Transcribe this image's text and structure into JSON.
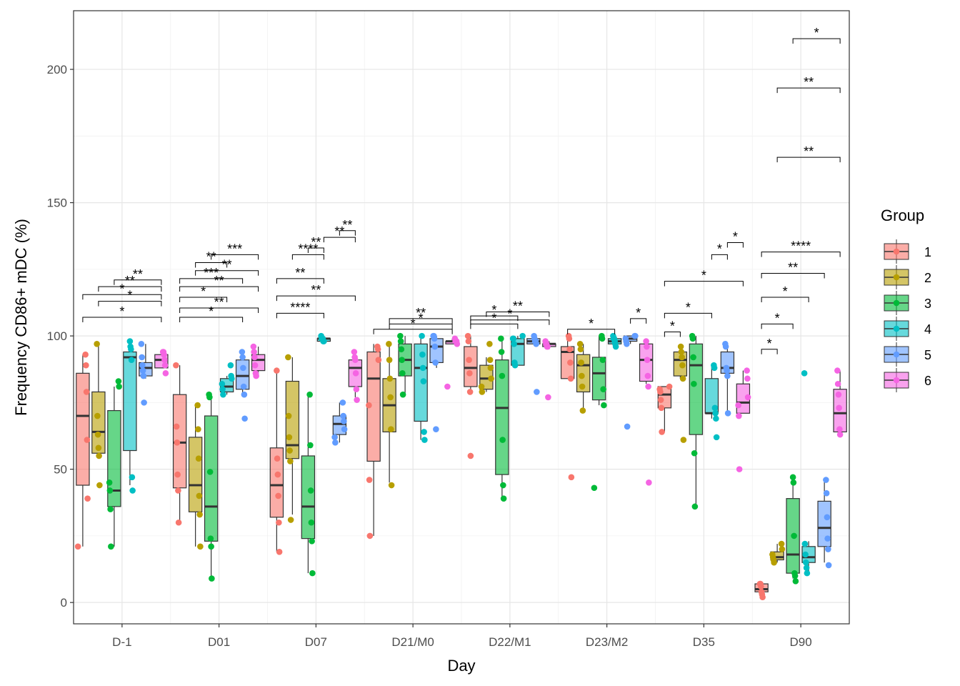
{
  "chart_data": {
    "type": "box",
    "xlabel": "Day",
    "ylabel": "Frequency  CD86+ mDC (%)",
    "ylim": [
      -8,
      222
    ],
    "yticks": [
      0,
      50,
      100,
      150,
      200
    ],
    "grid": true,
    "legend": {
      "title": "Group",
      "placement": "right",
      "entries": [
        "1",
        "2",
        "3",
        "4",
        "5",
        "6"
      ]
    },
    "series_colors": [
      "#F8766D",
      "#B79F00",
      "#00BA38",
      "#00BFC4",
      "#619CFF",
      "#F564E3"
    ],
    "categories": [
      "D-1",
      "D01",
      "D07",
      "D21/M0",
      "D22/M1",
      "D23/M2",
      "D35",
      "D90"
    ],
    "boxes": [
      [
        {
          "min": 21,
          "q1": 44,
          "median": 70,
          "q3": 86,
          "max": 93,
          "points": [
            21,
            39,
            61,
            79,
            89,
            93
          ]
        },
        {
          "min": 55,
          "q1": 56,
          "median": 64,
          "q3": 79,
          "max": 97,
          "points": [
            44,
            55,
            58,
            63,
            70,
            97
          ]
        },
        {
          "min": 21,
          "q1": 36,
          "median": 42,
          "q3": 72,
          "max": 81,
          "points": [
            21,
            35,
            42,
            45,
            81,
            83
          ]
        },
        {
          "min": 44,
          "q1": 57,
          "median": 92,
          "q3": 94,
          "max": 98,
          "points": [
            42,
            47,
            91,
            95,
            96,
            98
          ]
        },
        {
          "min": 84,
          "q1": 85,
          "median": 88,
          "q3": 90,
          "max": 97,
          "points": [
            75,
            85,
            87,
            89,
            92,
            97
          ]
        },
        {
          "min": 88,
          "q1": 88,
          "median": 91,
          "q3": 93,
          "max": 94,
          "points": [
            86,
            89,
            91,
            93,
            94,
            94
          ]
        }
      ],
      [
        {
          "min": 30,
          "q1": 43,
          "median": 60,
          "q3": 78,
          "max": 89,
          "points": [
            30,
            42,
            48,
            60,
            66,
            89
          ]
        },
        {
          "min": 21,
          "q1": 34,
          "median": 44,
          "q3": 62,
          "max": 74,
          "points": [
            21,
            33,
            40,
            54,
            65,
            74
          ]
        },
        {
          "min": 9,
          "q1": 23,
          "median": 36,
          "q3": 70,
          "max": 77,
          "points": [
            9,
            21,
            24,
            49,
            77,
            78
          ]
        },
        {
          "min": 78,
          "q1": 79,
          "median": 81,
          "q3": 84,
          "max": 85,
          "points": [
            78,
            80,
            82,
            84,
            85,
            89
          ]
        },
        {
          "min": 78,
          "q1": 80,
          "median": 85,
          "q3": 91,
          "max": 94,
          "points": [
            69,
            78,
            81,
            88,
            92,
            94
          ]
        },
        {
          "min": 85,
          "q1": 87,
          "median": 91,
          "q3": 93,
          "max": 96,
          "points": [
            85,
            86,
            89,
            92,
            94,
            96
          ]
        }
      ],
      [
        {
          "min": 19,
          "q1": 32,
          "median": 44,
          "q3": 58,
          "max": 87,
          "points": [
            19,
            30,
            40,
            48,
            54,
            87
          ]
        },
        {
          "min": 33,
          "q1": 54,
          "median": 59,
          "q3": 83,
          "max": 92,
          "points": [
            31,
            53,
            57,
            62,
            70,
            92
          ]
        },
        {
          "min": 11,
          "q1": 24,
          "median": 36,
          "q3": 55,
          "max": 78,
          "points": [
            11,
            23,
            30,
            42,
            59,
            78
          ]
        },
        {
          "min": 98,
          "q1": 98,
          "median": 99,
          "q3": 99,
          "max": 100,
          "points": [
            98,
            98,
            99,
            99,
            99,
            100
          ]
        },
        {
          "min": 60,
          "q1": 63,
          "median": 67,
          "q3": 70,
          "max": 75,
          "points": [
            60,
            62,
            65,
            68,
            70,
            75
          ]
        },
        {
          "min": 77,
          "q1": 81,
          "median": 88,
          "q3": 91,
          "max": 94,
          "points": [
            76,
            80,
            86,
            91,
            92,
            94
          ]
        }
      ],
      [
        {
          "min": 25,
          "q1": 53,
          "median": 84,
          "q3": 94,
          "max": 97,
          "points": [
            25,
            46,
            74,
            91,
            95,
            96
          ]
        },
        {
          "min": 45,
          "q1": 64,
          "median": 74,
          "q3": 84,
          "max": 97,
          "points": [
            44,
            65,
            77,
            84,
            91,
            97
          ]
        },
        {
          "min": 78,
          "q1": 85,
          "median": 91,
          "q3": 97,
          "max": 100,
          "points": [
            78,
            86,
            91,
            95,
            98,
            100
          ]
        },
        {
          "min": 61,
          "q1": 68,
          "median": 88,
          "q3": 97,
          "max": 100,
          "points": [
            61,
            64,
            83,
            88,
            93,
            100
          ]
        },
        {
          "min": 88,
          "q1": 90,
          "median": 96,
          "q3": 99,
          "max": 100,
          "points": [
            65,
            90,
            96,
            99,
            100,
            100
          ]
        },
        {
          "min": 97,
          "q1": 97,
          "median": 98,
          "q3": 98,
          "max": 99,
          "points": [
            81,
            97,
            98,
            98,
            98,
            99
          ]
        }
      ],
      [
        {
          "min": 79,
          "q1": 81,
          "median": 88,
          "q3": 96,
          "max": 100,
          "points": [
            55,
            79,
            86,
            91,
            98,
            100
          ]
        },
        {
          "min": 79,
          "q1": 80,
          "median": 84,
          "q3": 89,
          "max": 92,
          "points": [
            79,
            81,
            84,
            88,
            91,
            97
          ]
        },
        {
          "min": 39,
          "q1": 48,
          "median": 73,
          "q3": 91,
          "max": 99,
          "points": [
            39,
            44,
            61,
            85,
            94,
            99
          ]
        },
        {
          "min": 89,
          "q1": 89,
          "median": 97,
          "q3": 99,
          "max": 100,
          "points": [
            89,
            90,
            97,
            99,
            99,
            100
          ]
        },
        {
          "min": 97,
          "q1": 97,
          "median": 98,
          "q3": 99,
          "max": 100,
          "points": [
            79,
            97,
            98,
            98,
            99,
            100
          ]
        },
        {
          "min": 95,
          "q1": 96,
          "median": 97,
          "q3": 97,
          "max": 98,
          "points": [
            77,
            96,
            96,
            97,
            97,
            98
          ]
        }
      ],
      [
        {
          "min": 84,
          "q1": 84,
          "median": 94,
          "q3": 96,
          "max": 100,
          "points": [
            47,
            84,
            90,
            95,
            99,
            100
          ]
        },
        {
          "min": 72,
          "q1": 79,
          "median": 89,
          "q3": 93,
          "max": 97,
          "points": [
            72,
            81,
            85,
            90,
            95,
            97
          ]
        },
        {
          "min": 74,
          "q1": 76,
          "median": 86,
          "q3": 92,
          "max": 100,
          "points": [
            43,
            74,
            80,
            91,
            99,
            100
          ]
        },
        {
          "min": 96,
          "q1": 97,
          "median": 98,
          "q3": 99,
          "max": 100,
          "points": [
            96,
            97,
            98,
            99,
            99,
            100
          ]
        },
        {
          "min": 97,
          "q1": 98,
          "median": 99,
          "q3": 100,
          "max": 100,
          "points": [
            66,
            97,
            98,
            99,
            100,
            100
          ]
        },
        {
          "min": 82,
          "q1": 83,
          "median": 91,
          "q3": 97,
          "max": 98,
          "points": [
            45,
            81,
            85,
            91,
            96,
            98
          ]
        }
      ],
      [
        {
          "min": 64,
          "q1": 73,
          "median": 78,
          "q3": 81,
          "max": 81,
          "points": [
            64,
            73,
            76,
            79,
            80,
            81
          ]
        },
        {
          "min": 84,
          "q1": 85,
          "median": 91,
          "q3": 94,
          "max": 96,
          "points": [
            61,
            84,
            89,
            92,
            94,
            96
          ]
        },
        {
          "min": 36,
          "q1": 63,
          "median": 89,
          "q3": 97,
          "max": 100,
          "points": [
            36,
            56,
            82,
            92,
            99,
            100
          ]
        },
        {
          "min": 69,
          "q1": 71,
          "median": 71,
          "q3": 84,
          "max": 89,
          "points": [
            62,
            69,
            71,
            73,
            88,
            89
          ]
        },
        {
          "min": 71,
          "q1": 86,
          "median": 88,
          "q3": 94,
          "max": 97,
          "points": [
            71,
            85,
            87,
            88,
            96,
            97
          ]
        },
        {
          "min": 71,
          "q1": 71,
          "median": 75,
          "q3": 82,
          "max": 87,
          "points": [
            50,
            70,
            74,
            77,
            84,
            87
          ]
        }
      ],
      [
        {
          "min": 3,
          "q1": 4,
          "median": 5,
          "q3": 7,
          "max": 7,
          "points": [
            2,
            3,
            4,
            6,
            7,
            7
          ]
        },
        {
          "min": 15,
          "q1": 16,
          "median": 17,
          "q3": 19,
          "max": 22,
          "points": [
            15,
            16,
            17,
            18,
            20,
            22
          ]
        },
        {
          "min": 9,
          "q1": 11,
          "median": 18,
          "q3": 39,
          "max": 46,
          "points": [
            8,
            10,
            11,
            25,
            45,
            47
          ]
        },
        {
          "min": 11,
          "q1": 15,
          "median": 17,
          "q3": 21,
          "max": 23,
          "points": [
            11,
            13,
            15,
            18,
            22,
            86
          ]
        },
        {
          "min": 15,
          "q1": 21,
          "median": 28,
          "q3": 38,
          "max": 46,
          "points": [
            14,
            20,
            24,
            32,
            41,
            46
          ]
        },
        {
          "min": 64,
          "q1": 64,
          "median": 71,
          "q3": 80,
          "max": 87,
          "points": [
            63,
            65,
            73,
            78,
            82,
            87
          ]
        }
      ]
    ],
    "annotations": [
      {
        "category": "D-1",
        "from": 1,
        "to": 6,
        "y": 107,
        "label": "*"
      },
      {
        "category": "D-1",
        "from": 1,
        "to": 6,
        "y": 115.5,
        "label": "*"
      },
      {
        "category": "D-1",
        "from": 2,
        "to": 6,
        "y": 118.5,
        "label": "**"
      },
      {
        "category": "D-1",
        "from": 3,
        "to": 6,
        "y": 121,
        "label": "**"
      },
      {
        "category": "D-1",
        "from": 2,
        "to": 6,
        "y": 113,
        "label": "*"
      },
      {
        "category": "D01",
        "from": 1,
        "to": 5,
        "y": 107,
        "label": "*"
      },
      {
        "category": "D01",
        "from": 1,
        "to": 6,
        "y": 110.5,
        "label": "**"
      },
      {
        "category": "D01",
        "from": 1,
        "to": 4,
        "y": 114.5,
        "label": "*"
      },
      {
        "category": "D01",
        "from": 1,
        "to": 6,
        "y": 118.5,
        "label": "**"
      },
      {
        "category": "D01",
        "from": 1,
        "to": 5,
        "y": 121.5,
        "label": "***"
      },
      {
        "category": "D01",
        "from": 2,
        "to": 6,
        "y": 124.5,
        "label": "**"
      },
      {
        "category": "D01",
        "from": 2,
        "to": 4,
        "y": 127.5,
        "label": "**"
      },
      {
        "category": "D01",
        "from": 3,
        "to": 6,
        "y": 130.5,
        "label": "***"
      },
      {
        "category": "D07",
        "from": 1,
        "to": 4,
        "y": 108.5,
        "label": "****"
      },
      {
        "category": "D07",
        "from": 1,
        "to": 6,
        "y": 115,
        "label": "**"
      },
      {
        "category": "D07",
        "from": 1,
        "to": 4,
        "y": 121.5,
        "label": "**"
      },
      {
        "category": "D07",
        "from": 2,
        "to": 4,
        "y": 130.5,
        "label": "****"
      },
      {
        "category": "D07",
        "from": 3,
        "to": 4,
        "y": 133,
        "label": "**"
      },
      {
        "category": "D07",
        "from": 4,
        "to": 6,
        "y": 137,
        "label": "**"
      },
      {
        "category": "D07",
        "from": 5,
        "to": 6,
        "y": 139.5,
        "label": "**"
      },
      {
        "category": "D21/M0",
        "from": 1,
        "to": 6,
        "y": 102.5,
        "label": "*"
      },
      {
        "category": "D21/M0",
        "from": 2,
        "to": 6,
        "y": 104.5,
        "label": "*"
      },
      {
        "category": "D21/M0",
        "from": 2,
        "to": 6,
        "y": 106.5,
        "label": "**"
      },
      {
        "category": "D22/M1",
        "from": 1,
        "to": 4,
        "y": 104.5,
        "label": "*"
      },
      {
        "category": "D22/M1",
        "from": 1,
        "to": 6,
        "y": 106,
        "label": "*"
      },
      {
        "category": "D22/M1",
        "from": 1,
        "to": 4,
        "y": 107.5,
        "label": "*"
      },
      {
        "category": "D22/M1",
        "from": 2,
        "to": 6,
        "y": 109,
        "label": "**"
      },
      {
        "category": "D23/M2",
        "from": 1,
        "to": 4,
        "y": 102.5,
        "label": "*"
      },
      {
        "category": "D23/M2",
        "from": 5,
        "to": 6,
        "y": 106.5,
        "label": "*"
      },
      {
        "category": "D35",
        "from": 1,
        "to": 2,
        "y": 101.5,
        "label": "*"
      },
      {
        "category": "D35",
        "from": 1,
        "to": 4,
        "y": 108.5,
        "label": "*"
      },
      {
        "category": "D35",
        "from": 1,
        "to": 6,
        "y": 120.5,
        "label": "*"
      },
      {
        "category": "D35",
        "from": 4,
        "to": 5,
        "y": 130.5,
        "label": "*"
      },
      {
        "category": "D35",
        "from": 5,
        "to": 6,
        "y": 135,
        "label": "*"
      },
      {
        "category": "D90",
        "from": 1,
        "to": 2,
        "y": 95,
        "label": "*"
      },
      {
        "category": "D90",
        "from": 1,
        "to": 3,
        "y": 104.5,
        "label": "*"
      },
      {
        "category": "D90",
        "from": 1,
        "to": 4,
        "y": 114.5,
        "label": "*"
      },
      {
        "category": "D90",
        "from": 1,
        "to": 5,
        "y": 123.5,
        "label": "**"
      },
      {
        "category": "D90",
        "from": 1,
        "to": 6,
        "y": 131.5,
        "label": "****"
      },
      {
        "category": "D90",
        "from": 2,
        "to": 6,
        "y": 167,
        "label": "**"
      },
      {
        "category": "D90",
        "from": 2,
        "to": 6,
        "y": 193,
        "label": "**"
      },
      {
        "category": "D90",
        "from": 3,
        "to": 6,
        "y": 211.5,
        "label": "*"
      }
    ]
  }
}
